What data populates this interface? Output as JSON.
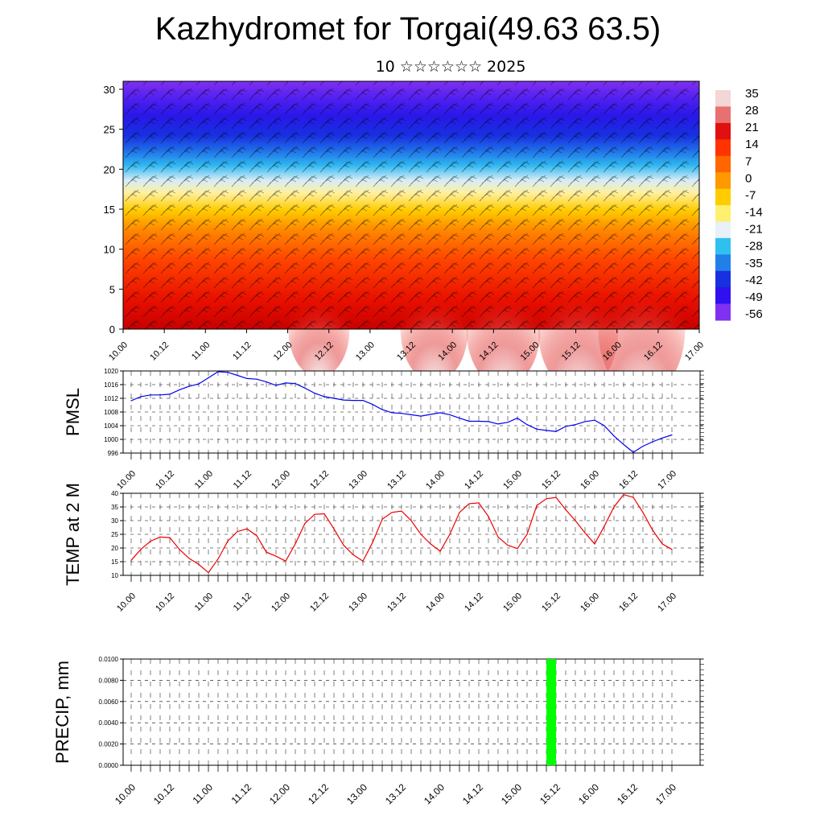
{
  "title": "Kazhydromet for Torgai(49.63 63.5)",
  "subtitle": "10 ☆☆☆☆☆☆ 2025",
  "time_labels": [
    "10.00",
    "10.12",
    "11.00",
    "11.12",
    "12.00",
    "12.12",
    "13.00",
    "13.12",
    "14.00",
    "14.12",
    "15.00",
    "15.12",
    "16.00",
    "16.12",
    "17.00"
  ],
  "chart_data": [
    {
      "type": "heatmap",
      "description_key": "vertical cross-section temperature with wind barbs",
      "x": [
        "10.00",
        "10.12",
        "11.00",
        "11.12",
        "12.00",
        "12.12",
        "13.00",
        "13.12",
        "14.00",
        "14.12",
        "15.00",
        "15.12",
        "16.00",
        "16.12",
        "17.00"
      ],
      "y_ticks": [
        0,
        5,
        10,
        15,
        20,
        25,
        30
      ],
      "ylim": [
        0,
        31
      ],
      "colorbar_labels": [
        "35",
        "28",
        "21",
        "14",
        "7",
        "0",
        "-7",
        "-14",
        "-21",
        "-28",
        "-35",
        "-42",
        "-49",
        "-56"
      ],
      "colormap": [
        "#f3d6d6",
        "#e87070",
        "#e01010",
        "#ff3300",
        "#ff6600",
        "#ff9900",
        "#ffcc00",
        "#fff070",
        "#e8f0f8",
        "#30c0f0",
        "#2080e8",
        "#1830e0",
        "#3010f0",
        "#8030f0"
      ]
    },
    {
      "type": "line",
      "ylabel": "PMSL",
      "ylim": [
        996,
        1020
      ],
      "y_ticks": [
        "996",
        "1000",
        "1004",
        "1008",
        "1012",
        "1016",
        "1020"
      ],
      "color": "#0000ee",
      "x_hours": [
        0,
        3,
        6,
        9,
        12,
        15,
        18,
        21,
        24,
        27,
        30,
        33,
        36,
        39,
        42,
        45,
        48,
        51,
        54,
        57,
        60,
        63,
        66,
        69,
        72,
        75,
        78,
        81,
        84,
        87,
        90,
        93,
        96,
        99,
        102,
        105,
        108,
        111,
        114,
        117,
        120,
        123,
        126,
        129,
        132,
        135,
        138,
        141,
        144,
        147,
        150,
        153,
        156,
        159,
        162,
        165,
        168
      ],
      "values": [
        1011.3,
        1012.5,
        1013,
        1013,
        1013.2,
        1014.5,
        1015.5,
        1016.2,
        1018,
        1019.8,
        1019.6,
        1018.7,
        1017.8,
        1017.6,
        1016.8,
        1015.8,
        1016.5,
        1016.3,
        1015,
        1013.5,
        1012.5,
        1012,
        1011.5,
        1011.4,
        1011.4,
        1010.2,
        1008.7,
        1007.8,
        1007.6,
        1007.2,
        1006.8,
        1007.3,
        1007.8,
        1007.2,
        1006.2,
        1005.3,
        1005.3,
        1005.2,
        1004.5,
        1005,
        1006.2,
        1004.3,
        1003,
        1002.6,
        1002.3,
        1003.8,
        1004.3,
        1005.2,
        1005.6,
        1004,
        1001,
        998.5,
        996.2,
        998,
        999.3,
        1000.4,
        1001.3
      ]
    },
    {
      "type": "line",
      "ylabel": "TEMP at 2 M",
      "ylim": [
        10,
        40
      ],
      "y_ticks": [
        "10",
        "15",
        "20",
        "25",
        "30",
        "35",
        "40"
      ],
      "color": "#ee0000",
      "x_hours": [
        0,
        3,
        6,
        9,
        12,
        15,
        18,
        21,
        24,
        27,
        30,
        33,
        36,
        39,
        42,
        45,
        48,
        51,
        54,
        57,
        60,
        63,
        66,
        69,
        72,
        75,
        78,
        81,
        84,
        87,
        90,
        93,
        96,
        99,
        102,
        105,
        108,
        111,
        114,
        117,
        120,
        123,
        126,
        129,
        132,
        135,
        138,
        141,
        144,
        147,
        150,
        153,
        156,
        159,
        162,
        165,
        168
      ],
      "values": [
        15.5,
        19.5,
        22.5,
        24,
        23.8,
        19.5,
        16.2,
        14,
        11,
        16,
        22.5,
        26,
        27,
        24.5,
        18.5,
        17,
        15.2,
        21.5,
        29,
        32.3,
        32.5,
        27,
        21,
        17.5,
        15.2,
        22,
        30.5,
        33,
        33.5,
        30,
        25,
        21.5,
        18.8,
        25,
        33,
        36.2,
        36.5,
        31.5,
        24,
        21,
        19.8,
        25,
        35.5,
        38,
        38.5,
        34,
        30,
        25.5,
        21.5,
        28,
        35,
        39.5,
        38.5,
        33,
        26.5,
        21.5,
        19.5
      ]
    },
    {
      "type": "bar",
      "ylabel": "PRECIP, mm",
      "ylim": [
        0,
        0.01
      ],
      "y_ticks": [
        "0.0000",
        "0.0020",
        "0.0040",
        "0.0060",
        "0.0080",
        "0.0100"
      ],
      "color": "#00ff00",
      "x_hours": [
        0,
        3,
        6,
        9,
        12,
        15,
        18,
        21,
        24,
        27,
        30,
        33,
        36,
        39,
        42,
        45,
        48,
        51,
        54,
        57,
        60,
        63,
        66,
        69,
        72,
        75,
        78,
        81,
        84,
        87,
        90,
        93,
        96,
        99,
        102,
        105,
        108,
        111,
        114,
        117,
        120,
        123,
        126,
        129,
        132,
        135,
        138,
        141,
        144,
        147,
        150,
        153,
        156,
        159,
        162,
        165,
        168
      ],
      "values": [
        0,
        0,
        0,
        0,
        0,
        0,
        0,
        0,
        0,
        0,
        0,
        0,
        0,
        0,
        0,
        0,
        0,
        0,
        0,
        0,
        0,
        0,
        0,
        0,
        0,
        0,
        0,
        0,
        0,
        0,
        0,
        0,
        0,
        0,
        0,
        0,
        0,
        0,
        0,
        0,
        0,
        0,
        0,
        0,
        0,
        0,
        0,
        0,
        0,
        0,
        0,
        0,
        0,
        0,
        0,
        0,
        0
      ],
      "bars": [
        {
          "x_hour": 130.5,
          "value": 0.01
        }
      ]
    }
  ]
}
